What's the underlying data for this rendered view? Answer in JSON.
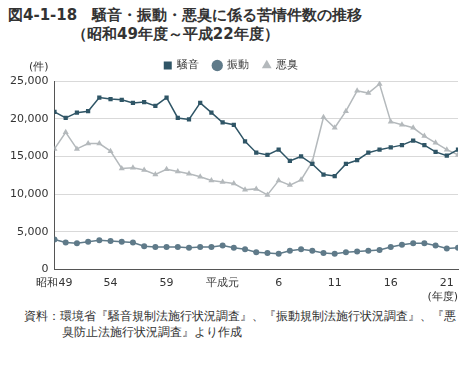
{
  "chart_data": {
    "type": "line",
    "title": "図4-1-18　騒音・振動・悪臭に係る苦情件数の推移",
    "subtitle": "（昭和49年度～平成22年度）",
    "y_label": "(件)",
    "x_label": "(年度)",
    "source": "資料：環境省『騒音規制法施行状況調査』、『振動規制法施行状況調査』、『悪臭防止法施行状況調査』より作成",
    "categories": [
      "昭和49",
      null,
      null,
      null,
      null,
      "54",
      null,
      null,
      null,
      null,
      "59",
      null,
      null,
      null,
      null,
      "平成元",
      null,
      null,
      null,
      null,
      "6",
      null,
      null,
      null,
      null,
      "11",
      null,
      null,
      null,
      null,
      "16",
      null,
      null,
      null,
      null,
      "21",
      null
    ],
    "series": [
      {
        "name": "騒音",
        "color": "#2f5566",
        "marker": "square",
        "values": [
          20900,
          20100,
          20800,
          21000,
          22800,
          22600,
          22500,
          22100,
          22200,
          21700,
          22800,
          20100,
          19900,
          22100,
          20800,
          19500,
          19200,
          17000,
          15500,
          15200,
          15900,
          14400,
          15000,
          14000,
          12600,
          12400,
          14000,
          14500,
          15500,
          15900,
          16200,
          16500,
          17100,
          16500,
          15600,
          15100,
          15900
        ]
      },
      {
        "name": "振動",
        "color": "#5f7a89",
        "marker": "circle",
        "values": [
          4000,
          3600,
          3500,
          3700,
          3900,
          3800,
          3700,
          3600,
          3100,
          3000,
          3000,
          3000,
          2900,
          3000,
          3000,
          3200,
          2900,
          2700,
          2300,
          2200,
          2100,
          2500,
          2700,
          2500,
          2200,
          2100,
          2300,
          2400,
          2500,
          2600,
          3000,
          3300,
          3500,
          3500,
          3200,
          2800,
          2900
        ]
      },
      {
        "name": "悪臭",
        "color": "#b4b9bc",
        "marker": "triangle",
        "values": [
          16000,
          18200,
          16000,
          16700,
          16700,
          15700,
          13400,
          13500,
          13200,
          12600,
          13300,
          13000,
          12700,
          12300,
          11800,
          11600,
          11400,
          10600,
          10700,
          9900,
          11800,
          11200,
          11900,
          14300,
          20200,
          18800,
          21000,
          23700,
          23400,
          24600,
          19600,
          19200,
          18800,
          17700,
          16800,
          15900,
          15200
        ]
      }
    ],
    "ylim": [
      0,
      25000
    ],
    "yticks": [
      0,
      {
        "value": 5000,
        "label": "5,000"
      },
      {
        "value": 10000,
        "label": "10,000"
      },
      {
        "value": 15000,
        "label": "15,000"
      },
      {
        "value": 20000,
        "label": "20,000"
      },
      {
        "value": 25000,
        "label": "25,000"
      }
    ],
    "grid": true,
    "legend": "top"
  }
}
